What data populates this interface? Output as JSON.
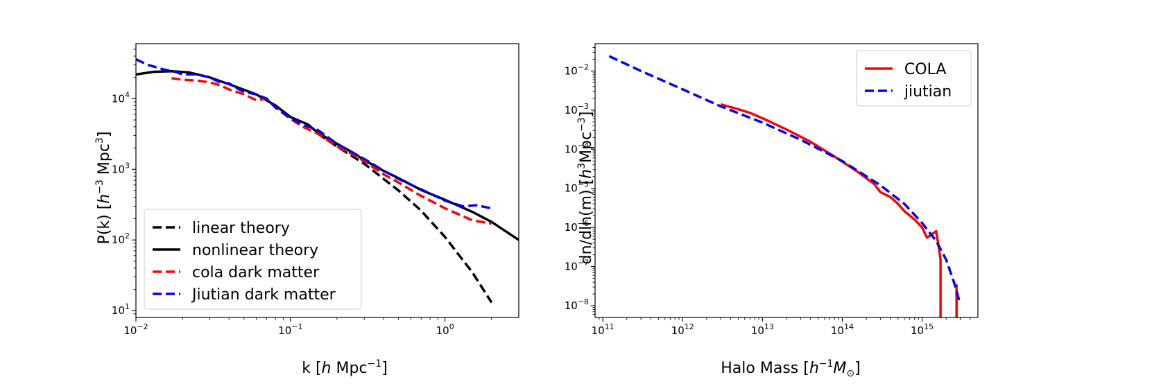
{
  "chart_data": [
    {
      "type": "line",
      "xscale": "log",
      "yscale": "log",
      "xlim": [
        0.01,
        3.0
      ],
      "ylim": [
        8,
        60000
      ],
      "xlabel": "k [h Mpc^-1]",
      "ylabel": "P(k) [h^-3 Mpc^3]",
      "xlabel_parts": {
        "pre": "k [",
        "italic": "h",
        "mid": " Mpc",
        "sup": "−1",
        "post": "]"
      },
      "ylabel_parts": {
        "pre": "P(k) [",
        "italic": "h",
        "sup1": "−3",
        "mid": " Mpc",
        "sup2": "3",
        "post": "]"
      },
      "xticks": [
        {
          "value": 0.01,
          "base": "10",
          "exp": "−2"
        },
        {
          "value": 0.1,
          "base": "10",
          "exp": "−1"
        },
        {
          "value": 1,
          "base": "10",
          "exp": "0"
        }
      ],
      "yticks": [
        {
          "value": 10,
          "base": "10",
          "exp": "1"
        },
        {
          "value": 100,
          "base": "10",
          "exp": "2"
        },
        {
          "value": 1000,
          "base": "10",
          "exp": "3"
        },
        {
          "value": 10000,
          "base": "10",
          "exp": "4"
        }
      ],
      "grid": false,
      "legend_position": "lower-left",
      "series": [
        {
          "name": "linear theory",
          "color": "#000000",
          "dash": "dashed",
          "x": [
            0.15,
            0.2,
            0.3,
            0.5,
            0.7,
            1.0,
            1.5,
            2.0
          ],
          "y": [
            3200,
            2100,
            1200,
            500,
            260,
            110,
            35,
            13
          ]
        },
        {
          "name": "nonlinear theory",
          "color": "#000000",
          "dash": "solid",
          "x": [
            0.01,
            0.013,
            0.017,
            0.022,
            0.03,
            0.04,
            0.06,
            0.08,
            0.1,
            0.13,
            0.15,
            0.2,
            0.25,
            0.3,
            0.4,
            0.5,
            0.7,
            1.0,
            1.5,
            2.0,
            3.0
          ],
          "y": [
            22000,
            24000,
            24500,
            23500,
            20000,
            16000,
            11500,
            8000,
            5500,
            4300,
            3300,
            2300,
            1750,
            1350,
            950,
            750,
            510,
            370,
            250,
            180,
            100
          ]
        },
        {
          "name": "cola dark matter",
          "color": "#ff0000",
          "dash": "dashed",
          "x": [
            0.017,
            0.02,
            0.025,
            0.03,
            0.035,
            0.04,
            0.05,
            0.06,
            0.07,
            0.08,
            0.1,
            0.12,
            0.15,
            0.2,
            0.25,
            0.3,
            0.4,
            0.5,
            0.7,
            1.0,
            1.5,
            2.0
          ],
          "y": [
            19500,
            18500,
            18000,
            17000,
            15500,
            13500,
            11500,
            9500,
            10000,
            7500,
            5200,
            4000,
            3200,
            2100,
            1650,
            1300,
            850,
            650,
            420,
            280,
            190,
            170
          ]
        },
        {
          "name": "Jiutian dark matter",
          "color": "#0000ff",
          "dash": "dashed",
          "x": [
            0.01,
            0.012,
            0.015,
            0.018,
            0.02,
            0.025,
            0.03,
            0.035,
            0.04,
            0.045,
            0.05,
            0.06,
            0.07,
            0.08,
            0.1,
            0.12,
            0.15,
            0.2,
            0.25,
            0.3,
            0.4,
            0.5,
            0.7,
            1.0,
            1.3,
            1.6,
            2.0
          ],
          "y": [
            36000,
            30000,
            26000,
            24000,
            22000,
            22000,
            20000,
            17000,
            16500,
            14000,
            12500,
            11500,
            10000,
            7500,
            5300,
            4300,
            3600,
            2300,
            1750,
            1400,
            960,
            730,
            520,
            360,
            300,
            310,
            280
          ]
        }
      ]
    },
    {
      "type": "line",
      "xscale": "log",
      "yscale": "log",
      "xlim": [
        80000000000.0,
        5000000000000000.0
      ],
      "ylim": [
        5e-09,
        0.05
      ],
      "xlabel": "Halo Mass [h^-1 M_sun]",
      "ylabel": "dn/dln(m) [h^3 Mpc^-3]",
      "xlabel_parts": {
        "pre": "Halo Mass [",
        "italic": "h",
        "sup": "−1",
        "m": "M",
        "sub": "⊙",
        "post": "]"
      },
      "ylabel_parts": {
        "pre": "dn/dln(m) [",
        "italic": "h",
        "sup1": "3",
        "mid": "Mpc",
        "sup2": "−3",
        "post": "]"
      },
      "xticks": [
        {
          "value": 100000000000.0,
          "base": "10",
          "exp": "11"
        },
        {
          "value": 1000000000000.0,
          "base": "10",
          "exp": "12"
        },
        {
          "value": 10000000000000.0,
          "base": "10",
          "exp": "13"
        },
        {
          "value": 100000000000000.0,
          "base": "10",
          "exp": "14"
        },
        {
          "value": 1000000000000000.0,
          "base": "10",
          "exp": "15"
        }
      ],
      "yticks": [
        {
          "value": 1e-08,
          "base": "10",
          "exp": "−8"
        },
        {
          "value": 1e-07,
          "base": "10",
          "exp": "−7"
        },
        {
          "value": 1e-06,
          "base": "10",
          "exp": "−6"
        },
        {
          "value": 1e-05,
          "base": "10",
          "exp": "−5"
        },
        {
          "value": 0.0001,
          "base": "10",
          "exp": "−4"
        },
        {
          "value": 0.001,
          "base": "10",
          "exp": "−3"
        },
        {
          "value": 0.01,
          "base": "10",
          "exp": "−2"
        }
      ],
      "grid": false,
      "legend_position": "upper-right",
      "series": [
        {
          "name": "COLA",
          "color": "#ff0000",
          "dash": "solid",
          "x": [
            3000000000000.0,
            5000000000000.0,
            7000000000000.0,
            10000000000000.0,
            20000000000000.0,
            40000000000000.0,
            80000000000000.0,
            150000000000000.0,
            250000000000000.0,
            300000000000000.0,
            400000000000000.0,
            500000000000000.0,
            600000000000000.0,
            800000000000000.0,
            1000000000000000.0,
            1150000000000000.0,
            1300000000000000.0,
            1500000000000000.0,
            1620000000000000.0,
            1700000000000000.0,
            1700000000000000.0
          ],
          "y": [
            0.0014,
            0.00105,
            0.00085,
            0.00062,
            0.00032,
            0.000155,
            6.5e-05,
            2.8e-05,
            1.3e-05,
            8e-06,
            6e-06,
            4e-06,
            2.6e-06,
            1.6e-06,
            1e-06,
            5.5e-07,
            6.5e-07,
            8e-07,
            3e-07,
            1.5e-07,
            5e-09
          ]
        },
        {
          "name": "COLA",
          "color": "#ff0000",
          "dash": "solid",
          "hide_in_legend": true,
          "x": [
            2700000000000000.0,
            2700000000000000.0
          ],
          "y": [
            3.5e-08,
            5e-09
          ]
        },
        {
          "name": "jiutian",
          "color": "#0000ff",
          "dash": "dashed",
          "x": [
            120000000000.0,
            300000000000.0,
            1000000000000.0,
            3000000000000.0,
            10000000000000.0,
            30000000000000.0,
            100000000000000.0,
            300000000000000.0,
            600000000000000.0,
            1000000000000000.0,
            1500000000000000.0,
            2000000000000000.0,
            2500000000000000.0,
            3000000000000000.0
          ],
          "y": [
            0.024,
            0.01,
            0.0034,
            0.00125,
            0.00048,
            0.000175,
            5e-05,
            1.2e-05,
            4e-06,
            1.3e-06,
            4.5e-07,
            1.5e-07,
            4e-08,
            1.1e-08
          ]
        }
      ]
    }
  ]
}
